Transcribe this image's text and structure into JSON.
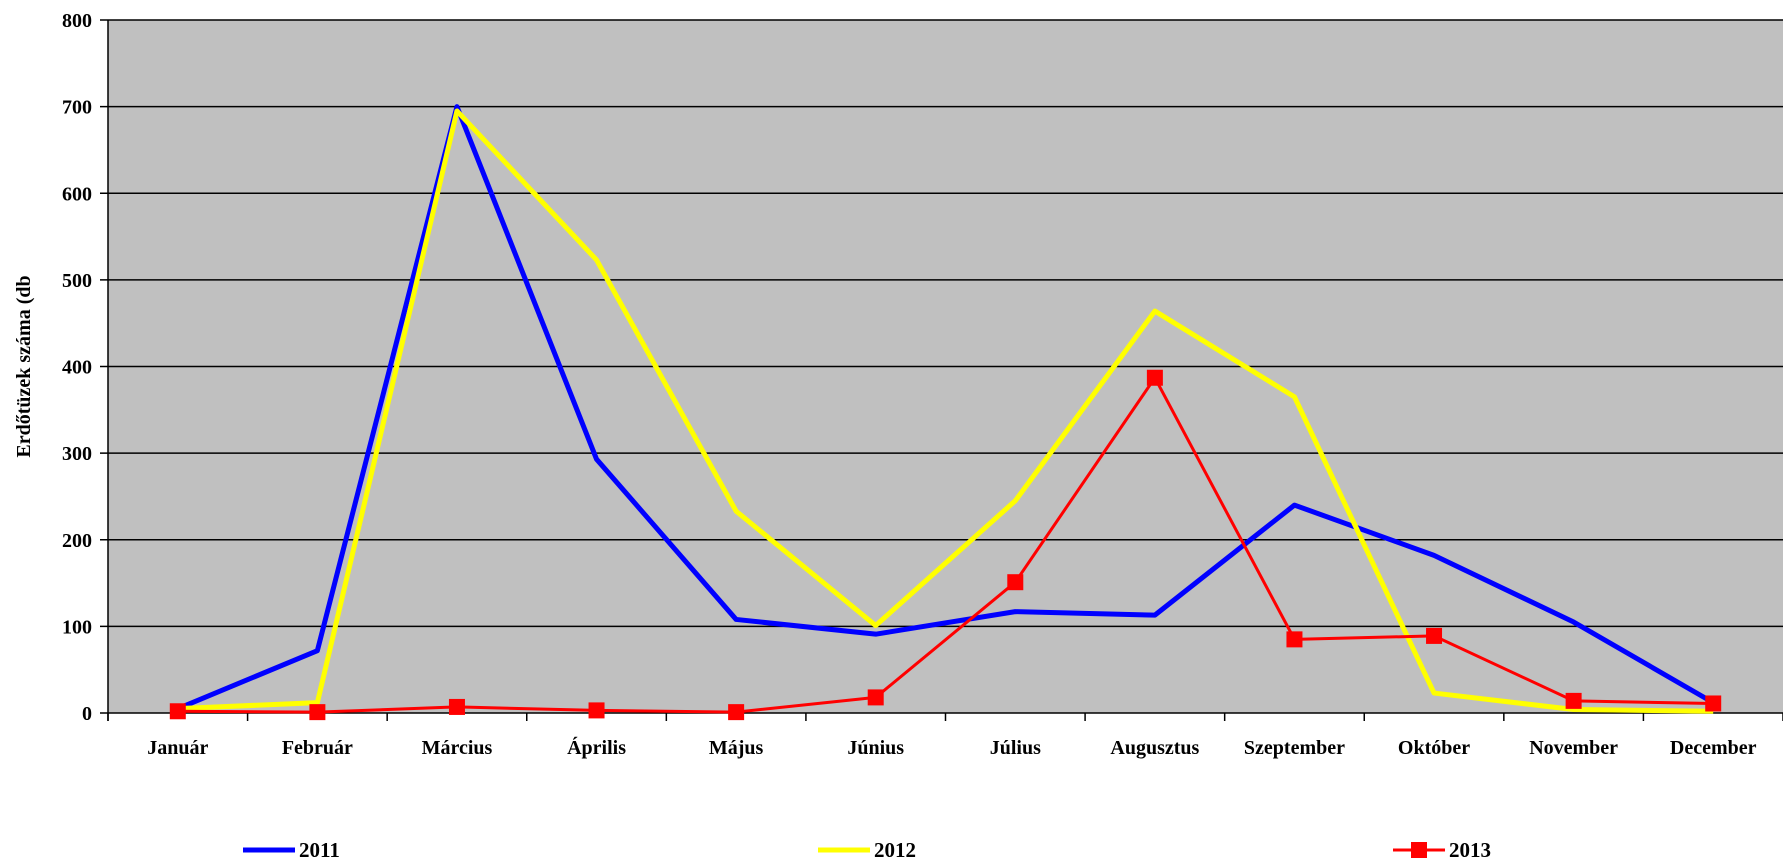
{
  "chart_data": {
    "type": "line",
    "title": "",
    "xlabel": "",
    "ylabel": "Erdőtüzek száma (db",
    "ylim": [
      0,
      800
    ],
    "yticks": [
      0,
      100,
      200,
      300,
      400,
      500,
      600,
      700,
      800
    ],
    "grid": true,
    "plot_background": "#c0c0c0",
    "legend_position": "bottom",
    "categories": [
      "Január",
      "Február",
      "Március",
      "Április",
      "Május",
      "Június",
      "Július",
      "Augusztus",
      "Szeptember",
      "Október",
      "November",
      "December"
    ],
    "series": [
      {
        "name": "2011",
        "color": "#0000ff",
        "marker": "none",
        "values": [
          5,
          72,
          700,
          293,
          108,
          91,
          117,
          113,
          240,
          182,
          105,
          12
        ]
      },
      {
        "name": "2012",
        "color": "#ffff00",
        "marker": "none",
        "values": [
          5,
          12,
          695,
          523,
          233,
          101,
          245,
          464,
          365,
          23,
          4,
          2
        ]
      },
      {
        "name": "2013",
        "color": "#ff0000",
        "marker": "square",
        "values": [
          2,
          1,
          7,
          3,
          1,
          18,
          151,
          387,
          85,
          89,
          14,
          11
        ]
      }
    ]
  }
}
